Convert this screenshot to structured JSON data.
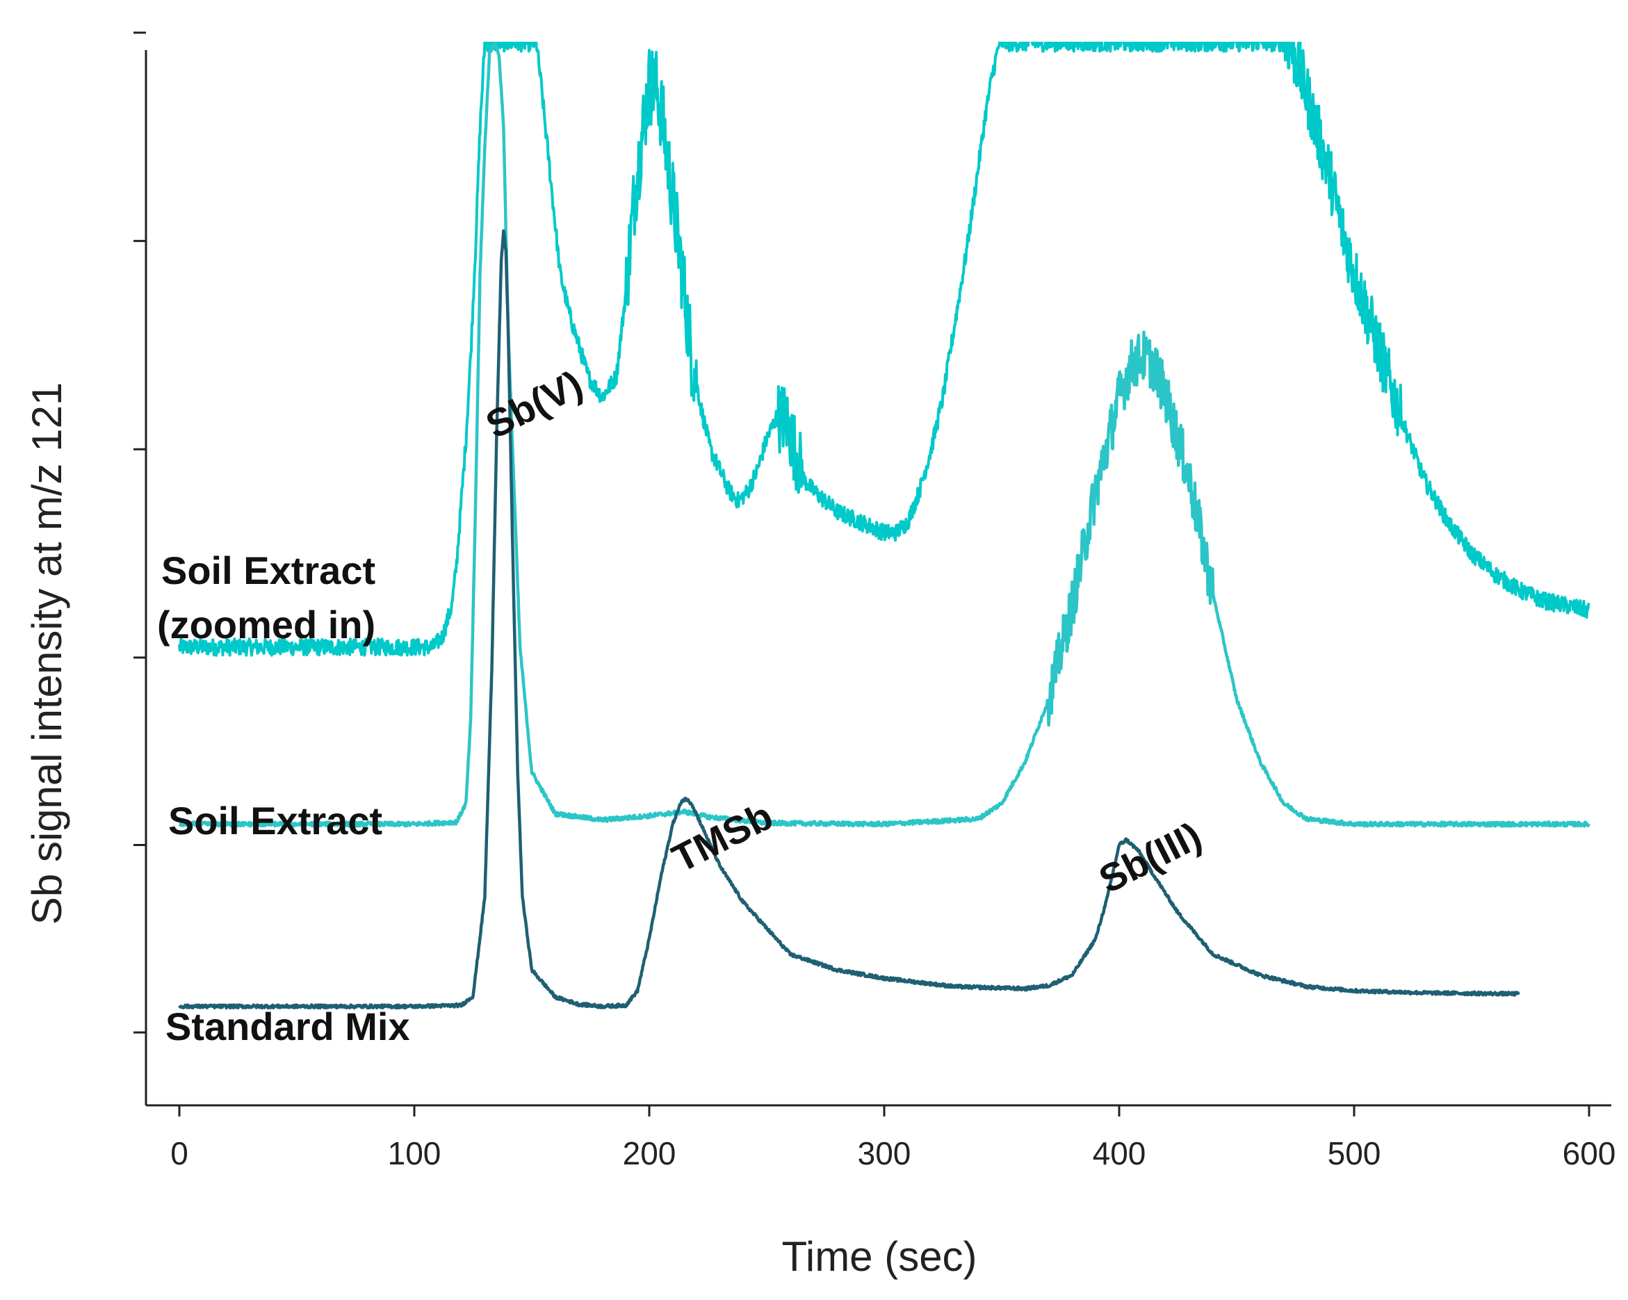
{
  "chart_data": {
    "type": "line",
    "title": "",
    "xlabel": "Time (sec)",
    "ylabel": "Sb signal intensity at m/z 121",
    "xlim": [
      0,
      600
    ],
    "xticks": [
      0,
      100,
      200,
      300,
      400,
      500,
      600
    ],
    "ylim": [
      0,
      100
    ],
    "yticks": [
      5,
      23,
      41,
      61,
      81,
      101
    ],
    "series": [
      {
        "name": "Standard Mix",
        "label": "Standard Mix",
        "color": "#1f5f73",
        "noise": 0.15,
        "x": [
          0,
          100,
          120,
          125,
          130,
          133,
          135,
          137,
          138,
          139,
          140,
          142,
          144,
          146,
          150,
          160,
          170,
          180,
          190,
          195,
          200,
          205,
          210,
          213,
          215,
          218,
          222,
          230,
          240,
          250,
          260,
          280,
          300,
          330,
          360,
          370,
          380,
          390,
          395,
          398,
          400,
          403,
          408,
          415,
          425,
          440,
          460,
          480,
          500,
          530,
          570
        ],
        "y": [
          7.5,
          7.5,
          7.6,
          8.5,
          18,
          40,
          62,
          79,
          82,
          80,
          72,
          50,
          30,
          18,
          11,
          8.4,
          7.7,
          7.5,
          7.6,
          9,
          14,
          20,
          25,
          26.8,
          27.5,
          27,
          25,
          21,
          17.5,
          15,
          12.5,
          11,
          10.2,
          9.4,
          9.2,
          9.5,
          10.5,
          14,
          18,
          21,
          23,
          23.5,
          22.5,
          20,
          16.5,
          12.5,
          10.5,
          9.4,
          9,
          8.8,
          8.7
        ]
      },
      {
        "name": "Soil Extract",
        "label": "Soil Extract",
        "color": "#2cc5c7",
        "noise": 0.2,
        "x": [
          0,
          100,
          118,
          122,
          124,
          126,
          128,
          130,
          132,
          134,
          136,
          138,
          140,
          145,
          150,
          160,
          180,
          200,
          215,
          225,
          250,
          300,
          340,
          350,
          360,
          370,
          380,
          390,
          400,
          405,
          410,
          415,
          420,
          430,
          440,
          450,
          460,
          470,
          480,
          500,
          550,
          600
        ],
        "y": [
          25,
          25,
          25.2,
          27,
          35,
          55,
          78,
          90,
          99,
          100,
          99,
          92,
          72,
          42,
          30,
          26,
          25.4,
          25.8,
          26.2,
          25.7,
          25.1,
          25,
          25.5,
          27,
          31,
          37,
          46,
          57,
          66,
          69,
          70,
          69,
          66,
          58,
          47,
          37,
          31,
          27,
          25.5,
          25,
          25,
          25
        ],
        "noise_ranges": [
          [
            370,
            440,
            2.5
          ]
        ]
      },
      {
        "name": "Soil Extract (zoomed in)",
        "label_lines": [
          "Soil Extract",
          "(zoomed in)"
        ],
        "color": "#00c9c9",
        "noise": 0.8,
        "x": [
          0,
          60,
          100,
          108,
          112,
          116,
          118,
          120,
          122,
          124,
          126,
          128,
          130,
          132,
          134,
          136,
          138,
          140,
          142,
          144,
          146,
          148,
          150,
          152,
          154,
          158,
          162,
          166,
          170,
          174,
          180,
          186,
          190,
          194,
          198,
          200,
          202,
          204,
          206,
          210,
          214,
          218,
          222,
          226,
          230,
          234,
          238,
          242,
          246,
          250,
          254,
          258,
          262,
          266,
          270,
          280,
          290,
          300,
          305,
          310,
          315,
          320,
          325,
          330,
          335,
          340,
          343,
          346,
          349,
          350,
          470,
          472,
          476,
          480,
          485,
          490,
          495,
          500,
          510,
          520,
          530,
          540,
          550,
          560,
          570,
          580,
          590,
          600
        ],
        "y": [
          42,
          42,
          42,
          42,
          43,
          46,
          50,
          56,
          62,
          70,
          80,
          92,
          100,
          100,
          100,
          100,
          100,
          100,
          100,
          100,
          100,
          100,
          100,
          100,
          96,
          87,
          78,
          74,
          71,
          68,
          66,
          68,
          76,
          86,
          93,
          96,
          96,
          95,
          92,
          85,
          78,
          70,
          65,
          61,
          59,
          57,
          56,
          57,
          59,
          62,
          64,
          64,
          61,
          58,
          57,
          55,
          54,
          53,
          53,
          54,
          57,
          61,
          66,
          73,
          80,
          88,
          93,
          97,
          100,
          100,
          100,
          100,
          98,
          95,
          91,
          87,
          82,
          78,
          71,
          64,
          58,
          54,
          51,
          49,
          47.5,
          46.5,
          46,
          45.5
        ],
        "noise_ranges": [
          [
            190,
            220,
            4
          ],
          [
            255,
            265,
            3.5
          ],
          [
            470,
            520,
            3
          ]
        ]
      }
    ],
    "annotations": [
      "Sb(V)",
      "TMSb",
      "Sb(III)"
    ]
  }
}
